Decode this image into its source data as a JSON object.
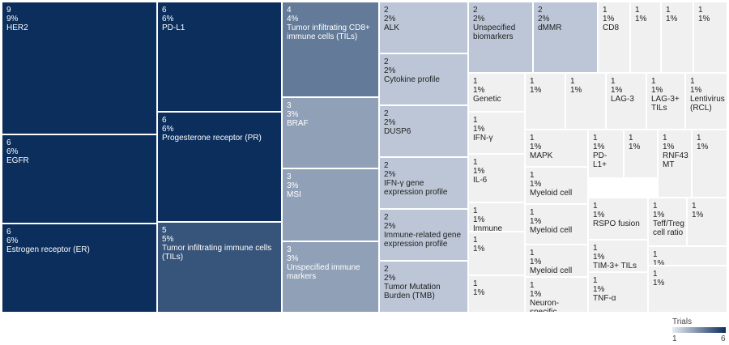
{
  "chart_data": {
    "type": "treemap",
    "legend": {
      "title": "Trials",
      "min": 1,
      "max": 6,
      "min_label": "1",
      "max_label": "6",
      "low_color": "#e8ecf4",
      "high_color": "#0b2e5c"
    },
    "tiles": [
      {
        "name": "HER2",
        "count": "9",
        "pct": "9%",
        "value": 9
      },
      {
        "name": "EGFR",
        "count": "6",
        "pct": "6%",
        "value": 6
      },
      {
        "name": "Estrogen receptor (ER)",
        "count": "6",
        "pct": "6%",
        "value": 6
      },
      {
        "name": "PD-L1",
        "count": "6",
        "pct": "6%",
        "value": 6
      },
      {
        "name": "Progesterone receptor (PR)",
        "count": "6",
        "pct": "6%",
        "value": 6
      },
      {
        "name": "Tumor infiltrating immune cells (TILs)",
        "count": "5",
        "pct": "5%",
        "value": 5
      },
      {
        "name": "Tumor infiltrating CD8+ immune cells (TILs)",
        "count": "4",
        "pct": "4%",
        "value": 4
      },
      {
        "name": "BRAF",
        "count": "3",
        "pct": "3%",
        "value": 3
      },
      {
        "name": "MSI",
        "count": "3",
        "pct": "3%",
        "value": 3
      },
      {
        "name": "Unspecified immune markers",
        "count": "3",
        "pct": "3%",
        "value": 3
      },
      {
        "name": "ALK",
        "count": "2",
        "pct": "2%",
        "value": 2
      },
      {
        "name": "Cytokine profile",
        "count": "2",
        "pct": "2%",
        "value": 2
      },
      {
        "name": "DUSP6",
        "count": "2",
        "pct": "2%",
        "value": 2
      },
      {
        "name": "IFN-γ gene expression profile",
        "count": "2",
        "pct": "2%",
        "value": 2
      },
      {
        "name": "Immune-related gene expression profile",
        "count": "2",
        "pct": "2%",
        "value": 2
      },
      {
        "name": "Tumor Mutation Burden (TMB)",
        "count": "2",
        "pct": "2%",
        "value": 2
      },
      {
        "name": "Unspecified biomarkers",
        "count": "2",
        "pct": "2%",
        "value": 2
      },
      {
        "name": "dMMR",
        "count": "2",
        "pct": "2%",
        "value": 2
      },
      {
        "name": "CD8",
        "count": "1",
        "pct": "1%",
        "value": 1
      },
      {
        "name": "",
        "count": "1",
        "pct": "1%",
        "value": 1
      },
      {
        "name": "",
        "count": "1",
        "pct": "1%",
        "value": 1
      },
      {
        "name": "",
        "count": "1",
        "pct": "1%",
        "value": 1
      },
      {
        "name": "",
        "count": "",
        "pct": "",
        "value": 1
      },
      {
        "name": "Genetic",
        "count": "1",
        "pct": "1%",
        "value": 1
      },
      {
        "name": "",
        "count": "1",
        "pct": "1%",
        "value": 1
      },
      {
        "name": "",
        "count": "1",
        "pct": "1%",
        "value": 1
      },
      {
        "name": "LAG-3",
        "count": "1",
        "pct": "1%",
        "value": 1
      },
      {
        "name": "LAG-3+ TILs",
        "count": "1",
        "pct": "1%",
        "value": 1
      },
      {
        "name": "Lentivirus (RCL)",
        "count": "1",
        "pct": "1%",
        "value": 1
      },
      {
        "name": "IFN-γ",
        "count": "1",
        "pct": "1%",
        "value": 1
      },
      {
        "name": "MAPK",
        "count": "1",
        "pct": "1%",
        "value": 1
      },
      {
        "name": "PD-L1+",
        "count": "1",
        "pct": "1%",
        "value": 1
      },
      {
        "name": "",
        "count": "1",
        "pct": "1%",
        "value": 1
      },
      {
        "name": "RNF43 MT",
        "count": "1",
        "pct": "1%",
        "value": 1
      },
      {
        "name": "",
        "count": "1",
        "pct": "1%",
        "value": 1
      },
      {
        "name": "IL-6",
        "count": "1",
        "pct": "1%",
        "value": 1
      },
      {
        "name": "Myeloid cell",
        "count": "1",
        "pct": "1%",
        "value": 1
      },
      {
        "name": "RSPO fusion",
        "count": "1",
        "pct": "1%",
        "value": 1
      },
      {
        "name": "Teff/Treg cell ratio",
        "count": "1",
        "pct": "1%",
        "value": 1
      },
      {
        "name": "",
        "count": "1",
        "pct": "1%",
        "value": 1
      },
      {
        "name": "Immune",
        "count": "1",
        "pct": "1%",
        "value": 1
      },
      {
        "name": "Myeloid cell",
        "count": "1",
        "pct": "1%",
        "value": 1
      },
      {
        "name": "TIM-3+ TILs",
        "count": "1",
        "pct": "1%",
        "value": 1
      },
      {
        "name": "",
        "count": "1",
        "pct": "1%",
        "value": 1
      },
      {
        "name": "",
        "count": "1",
        "pct": "1%",
        "value": 1
      },
      {
        "name": "Myeloid cell",
        "count": "1",
        "pct": "1%",
        "value": 1
      },
      {
        "name": "",
        "count": "1",
        "pct": "1%",
        "value": 1
      },
      {
        "name": "Neuron-specific",
        "count": "1",
        "pct": "1%",
        "value": 1
      },
      {
        "name": "TNF-α",
        "count": "1",
        "pct": "1%",
        "value": 1
      },
      {
        "name": "",
        "count": "1",
        "pct": "1%",
        "value": 1
      }
    ]
  }
}
